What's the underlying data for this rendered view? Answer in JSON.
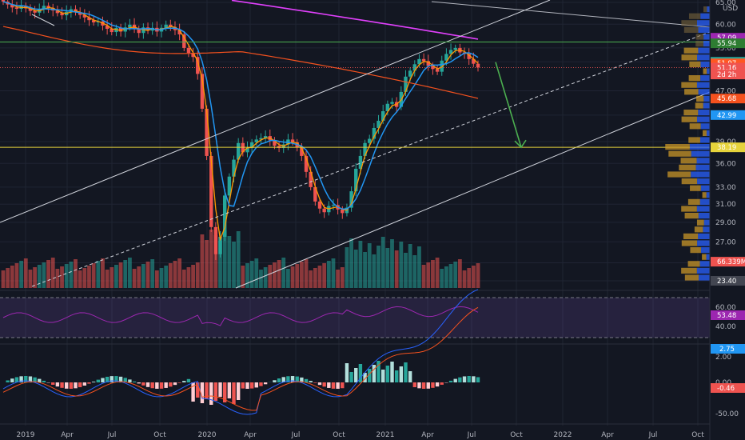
{
  "chart_data": {
    "type": "candlestick",
    "currency": "USD",
    "x_ticks": [
      "2019",
      "Apr",
      "Jul",
      "Oct",
      "2020",
      "Apr",
      "Jul",
      "Oct",
      "2021",
      "Apr",
      "Jul",
      "Oct",
      "2022",
      "Apr",
      "Jul",
      "Oct"
    ],
    "price_axis": {
      "scale": "log",
      "ticks": [
        "65.00",
        "60.00",
        "55.00",
        "52.27",
        "47.00",
        "42.99",
        "39.00",
        "36.00",
        "33.00",
        "31.00",
        "29.00",
        "27.00",
        "25.00",
        "23.40"
      ],
      "tag_labels": [
        "57.09",
        "55.94",
        "52.27",
        "51.97",
        "51.16",
        "2d 2h",
        "45.68",
        "42.99",
        "38.19",
        "66.339M",
        "23.40"
      ],
      "range": [
        23.4,
        66
      ]
    },
    "rsi": {
      "ticks": [
        "60.00",
        "40.00"
      ],
      "value_label": "53.48",
      "bands": [
        70,
        30
      ]
    },
    "macd": {
      "ticks": [
        "2.00",
        "0.00",
        "-50.00"
      ],
      "value_label": "2.75",
      "hist_label": "-0.46"
    },
    "price_series": {
      "close": [
        65.2,
        64.5,
        63.8,
        63.5,
        64.2,
        63.6,
        63.0,
        62.6,
        63.4,
        64.2,
        63.7,
        63.1,
        62.5,
        62.0,
        62.8,
        63.4,
        62.7,
        62.1,
        61.5,
        60.9,
        60.4,
        60.6,
        59.7,
        59.0,
        58.3,
        59.2,
        58.4,
        59.3,
        59.9,
        59.0,
        58.1,
        59.3,
        58.6,
        59.2,
        58.4,
        59.2,
        59.9,
        59.4,
        58.7,
        57.8,
        55.0,
        54.0,
        53.2,
        50.0,
        44.0,
        37.0,
        28.5,
        25.8,
        27.5,
        32.0,
        34.3,
        36.5,
        38.8,
        37.5,
        38.1,
        38.9,
        39.3,
        39.5,
        39.8,
        39.2,
        38.4,
        38.1,
        38.6,
        39.3,
        38.9,
        38.2,
        37.0,
        34.9,
        33.0,
        31.3,
        30.5,
        30.1,
        30.8,
        30.9,
        30.4,
        30.0,
        30.6,
        32.5,
        35.3,
        37.0,
        38.8,
        39.4,
        41.0,
        42.1,
        43.6,
        44.8,
        45.1,
        44.3,
        46.8,
        49.5,
        50.6,
        51.8,
        52.8,
        52.4,
        51.5,
        50.9,
        50.4,
        52.5,
        53.8,
        54.6,
        55.0,
        54.1,
        53.8,
        52.8,
        51.9,
        51.2
      ],
      "sma_long_magenta": [
        59.5,
        59.0,
        58.6,
        58.2,
        57.8,
        57.4,
        57.1,
        56.8
      ],
      "legend": []
    },
    "annotations": {
      "green_horizontal": 56.2,
      "yellow_horizontal": 38.19,
      "projection_arrow": {
        "from": 52.2,
        "to": 38.19
      }
    }
  }
}
